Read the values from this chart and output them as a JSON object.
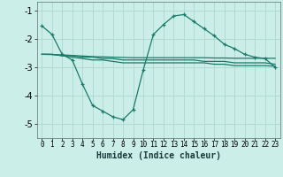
{
  "xlabel": "Humidex (Indice chaleur)",
  "bg_color": "#cceee8",
  "grid_color": "#aad8d0",
  "line_color": "#1a7a6a",
  "x_values": [
    0,
    1,
    2,
    3,
    4,
    5,
    6,
    7,
    8,
    9,
    10,
    11,
    12,
    13,
    14,
    15,
    16,
    17,
    18,
    19,
    20,
    21,
    22,
    23
  ],
  "line1_y": [
    -1.55,
    -1.85,
    -2.55,
    -2.75,
    -3.6,
    -4.35,
    -4.55,
    -4.75,
    -4.85,
    -4.5,
    -3.1,
    -1.85,
    -1.5,
    -1.2,
    -1.15,
    -1.4,
    -1.65,
    -1.9,
    -2.2,
    -2.35,
    -2.55,
    -2.65,
    -2.7,
    -3.0
  ],
  "line2_y": [
    -2.55,
    -2.56,
    -2.57,
    -2.59,
    -2.61,
    -2.63,
    -2.64,
    -2.65,
    -2.66,
    -2.67,
    -2.67,
    -2.67,
    -2.67,
    -2.67,
    -2.67,
    -2.67,
    -2.67,
    -2.68,
    -2.68,
    -2.69,
    -2.69,
    -2.69,
    -2.69,
    -2.69
  ],
  "line3_y": [
    -2.55,
    -2.55,
    -2.6,
    -2.65,
    -2.7,
    -2.75,
    -2.75,
    -2.8,
    -2.85,
    -2.85,
    -2.85,
    -2.85,
    -2.85,
    -2.85,
    -2.85,
    -2.85,
    -2.85,
    -2.9,
    -2.9,
    -2.95,
    -2.95,
    -2.95,
    -2.95,
    -2.97
  ],
  "line4_y": [
    -2.55,
    -2.55,
    -2.6,
    -2.6,
    -2.65,
    -2.65,
    -2.7,
    -2.7,
    -2.75,
    -2.75,
    -2.75,
    -2.75,
    -2.75,
    -2.75,
    -2.75,
    -2.75,
    -2.8,
    -2.8,
    -2.8,
    -2.85,
    -2.85,
    -2.85,
    -2.85,
    -2.9
  ],
  "ylim": [
    -5.5,
    -0.7
  ],
  "xlim": [
    -0.5,
    23.5
  ],
  "yticks": [
    -5,
    -4,
    -3,
    -2,
    -1
  ],
  "xticks": [
    0,
    1,
    2,
    3,
    4,
    5,
    6,
    7,
    8,
    9,
    10,
    11,
    12,
    13,
    14,
    15,
    16,
    17,
    18,
    19,
    20,
    21,
    22,
    23
  ]
}
